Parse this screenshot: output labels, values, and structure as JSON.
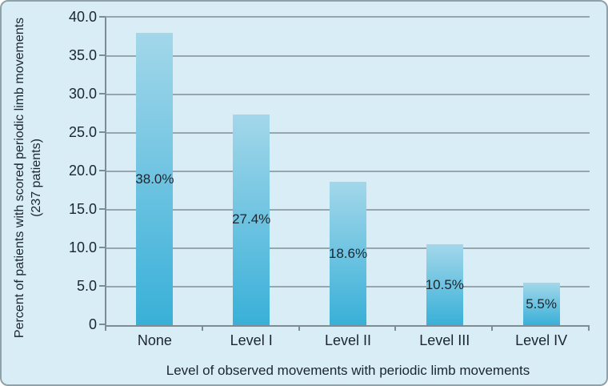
{
  "chart_data": {
    "type": "bar",
    "categories": [
      "None",
      "Level I",
      "Level II",
      "Level III",
      "Level IV"
    ],
    "values": [
      38.0,
      27.4,
      18.6,
      10.5,
      5.5
    ],
    "bar_labels": [
      "38.0%",
      "27.4%",
      "18.6%",
      "10.5%",
      "5.5%"
    ],
    "title": "",
    "xlabel": "Level of observed movements with periodic limb movements",
    "ylabel_line1": "Percent of patients with scored periodic limb movements",
    "ylabel_line2": "(237 patients)",
    "ylim": [
      0,
      40
    ],
    "ytick_step": 5,
    "yticks": [
      "40.0",
      "35.0",
      "30.0",
      "25.0",
      "20.0",
      "15.0",
      "10.0",
      "5.0",
      "0"
    ],
    "grid": true,
    "legend": "none"
  },
  "colors": {
    "background": "#d8edf6",
    "figure_border": "#90a1a9",
    "gridline": "#97a5ad",
    "axis": "#7e8c94",
    "bar_gradient_top": "#a3d7ea",
    "bar_gradient_bottom": "#39b0d8",
    "text": "#1b262e"
  }
}
